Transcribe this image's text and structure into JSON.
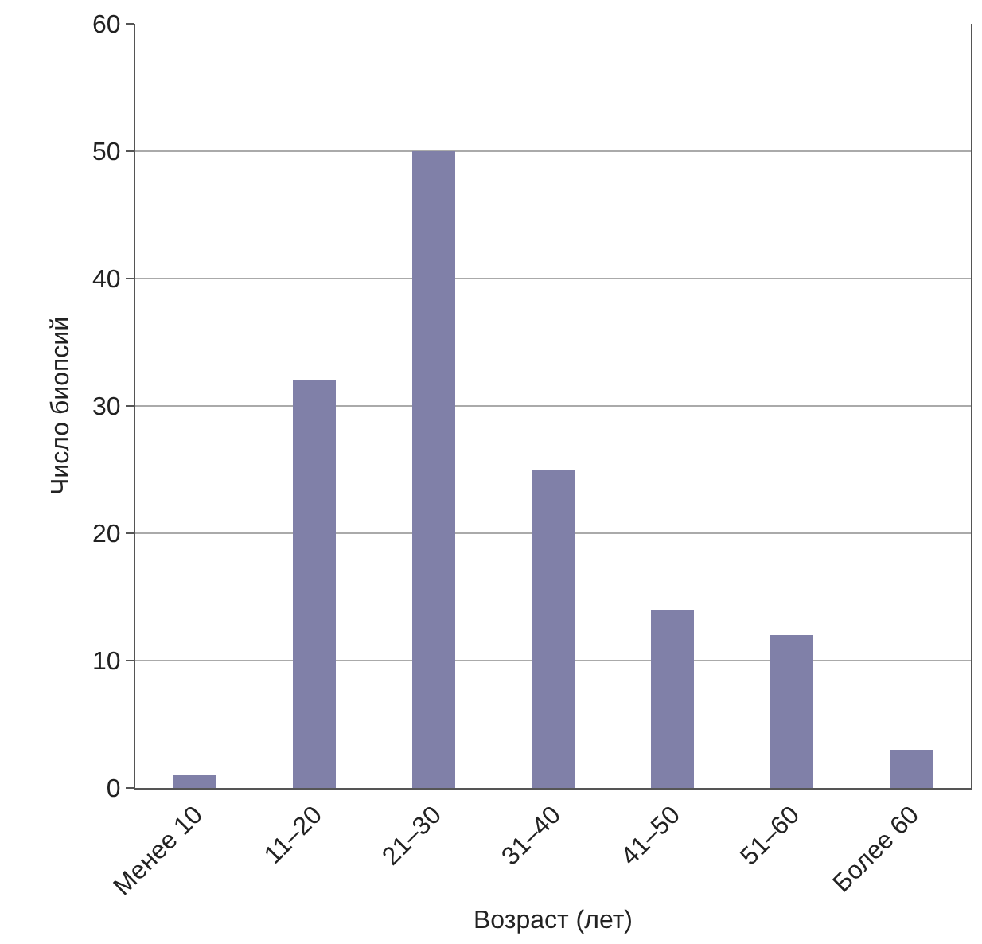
{
  "chart_data": {
    "type": "bar",
    "xlabel": "Возраст (лет)",
    "ylabel": "Число биопсий",
    "categories": [
      "Менее 10",
      "11–20",
      "21–30",
      "31–40",
      "41–50",
      "51–60",
      "Более 60"
    ],
    "values": [
      1,
      32,
      50,
      25,
      14,
      12,
      3
    ],
    "color": "#8080a8",
    "ylim": [
      0,
      60
    ],
    "yticks": [
      0,
      10,
      20,
      30,
      40,
      50,
      60
    ],
    "grid": "y"
  }
}
